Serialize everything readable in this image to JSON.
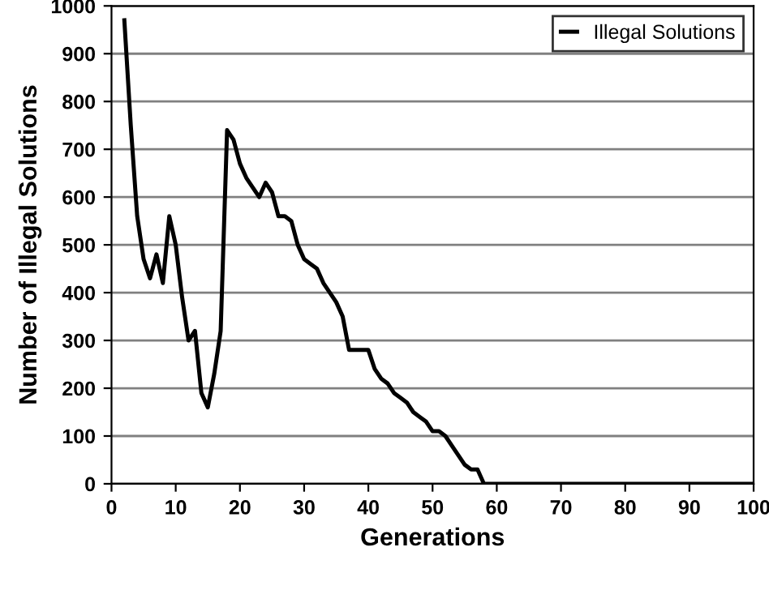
{
  "chart_data": {
    "type": "line",
    "xlabel": "Generations",
    "ylabel": "Number of Illegal Solutions",
    "xlim": [
      0,
      100
    ],
    "xticks": [
      0,
      10,
      20,
      30,
      40,
      50,
      60,
      70,
      80,
      90,
      100
    ],
    "ylim": [
      0,
      1000
    ],
    "yticks": [
      0,
      100,
      200,
      300,
      400,
      500,
      600,
      700,
      800,
      900,
      1000
    ],
    "grid": "y",
    "legend": "top right",
    "marker": "none",
    "line_style": "solid",
    "series": [
      {
        "name": "Illegal Solutions",
        "color": "#000000",
        "x": [
          2,
          3,
          4,
          5,
          6,
          7,
          8,
          9,
          10,
          11,
          12,
          13,
          14,
          15,
          16,
          17,
          18,
          19,
          20,
          21,
          22,
          23,
          24,
          25,
          26,
          27,
          28,
          29,
          30,
          31,
          32,
          33,
          34,
          35,
          36,
          37,
          38,
          39,
          40,
          41,
          42,
          43,
          44,
          45,
          46,
          47,
          48,
          49,
          50,
          51,
          52,
          53,
          54,
          55,
          56,
          57,
          58,
          60,
          70,
          80,
          90,
          100
        ],
        "values": [
          970,
          750,
          560,
          470,
          430,
          480,
          420,
          560,
          500,
          390,
          300,
          320,
          190,
          160,
          230,
          320,
          740,
          720,
          670,
          640,
          620,
          600,
          630,
          610,
          560,
          560,
          550,
          500,
          470,
          460,
          450,
          420,
          400,
          380,
          350,
          280,
          280,
          280,
          280,
          240,
          220,
          210,
          190,
          180,
          170,
          150,
          140,
          130,
          110,
          110,
          100,
          80,
          60,
          40,
          30,
          30,
          0,
          0,
          0,
          0,
          0,
          0
        ]
      }
    ]
  }
}
